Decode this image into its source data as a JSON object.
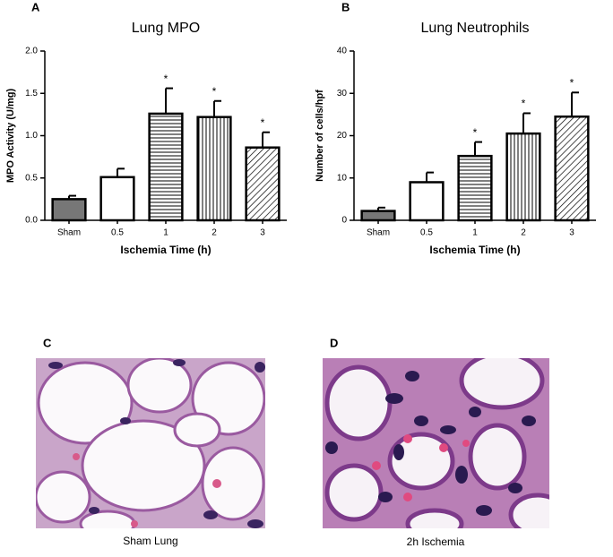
{
  "chart_data": [
    {
      "type": "bar",
      "panel": "A",
      "title": "Lung MPO",
      "x_label": "Ischemia Time (h)",
      "y_label": "MPO Activity (U/mg)",
      "categories": [
        "Sham",
        "0.5",
        "1",
        "2",
        "3"
      ],
      "values": [
        0.25,
        0.51,
        1.26,
        1.22,
        0.86
      ],
      "errors": [
        0.04,
        0.1,
        0.3,
        0.19,
        0.18
      ],
      "annotations": [
        null,
        null,
        "*",
        "*",
        "*"
      ],
      "bar_patterns": [
        "gray",
        "white",
        "horizontal",
        "vertical",
        "diagonal"
      ],
      "ylim": [
        0,
        2
      ],
      "yticks": [
        {
          "value": 0,
          "label": "0.0"
        },
        0.5,
        {
          "value": 1,
          "label": "1.0"
        },
        1.5,
        {
          "value": 2,
          "label": "2.0"
        }
      ]
    },
    {
      "type": "bar",
      "panel": "B",
      "title": "Lung Neutrophils",
      "x_label": "Ischemia Time (h)",
      "y_label": "Number of cells/hpf",
      "categories": [
        "Sham",
        "0.5",
        "1",
        "2",
        "3"
      ],
      "values": [
        2.2,
        9,
        15.2,
        20.5,
        24.5
      ],
      "errors": [
        0.8,
        2.3,
        3.3,
        4.8,
        5.7
      ],
      "annotations": [
        null,
        null,
        "*",
        "*",
        "*"
      ],
      "bar_patterns": [
        "gray",
        "white",
        "horizontal",
        "vertical",
        "diagonal"
      ],
      "ylim": [
        0,
        40
      ],
      "yticks": [
        0,
        10,
        20,
        30,
        40
      ]
    }
  ],
  "images": [
    {
      "panel": "C",
      "caption": "Sham Lung"
    },
    {
      "panel": "D",
      "caption": "2h Ischemia"
    }
  ]
}
